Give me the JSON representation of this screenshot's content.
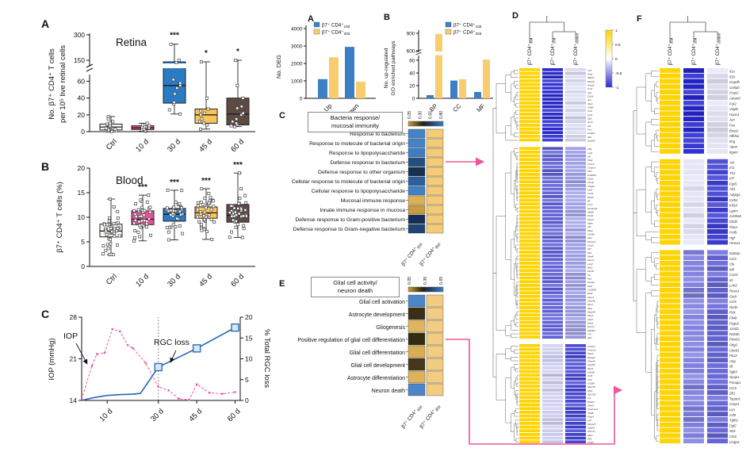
{
  "panels": {
    "a": "A",
    "b": "B",
    "c": "C",
    "mid_a": "A",
    "mid_b": "B",
    "mid_c": "C",
    "mid_e": "E",
    "d": "D",
    "f": "F"
  },
  "colors": {
    "pink_accent": "#f0559b",
    "box_ctrl": "#f5f5f2",
    "box_10d": "#f0509b",
    "box_30d": "#2b7bc4",
    "box_45d": "#f8c55a",
    "box_60d": "#5d4b43",
    "bar_blue": "#3d7fc4",
    "bar_yellow": "#f7cd6e",
    "cluster_yellow": "#ffd400",
    "line_blue": "#2f6db5"
  },
  "chart_data": [
    {
      "id": "retina_box",
      "type": "box",
      "panel": "A",
      "title": "Retina",
      "ylabel_lines": [
        "No. β7⁺ CD4⁺ T cells",
        "per 10⁵ live retinal cells"
      ],
      "yticks_lower": [
        0,
        20,
        40,
        60
      ],
      "yticks_upper": [
        150,
        300
      ],
      "broken_axis": true,
      "categories": [
        "Ctrl",
        "10 d",
        "30 d",
        "45 d",
        "60 d"
      ],
      "box_colors": [
        "#f5f5f2",
        "#f0509b",
        "#2b7bc4",
        "#f8c55a",
        "#5d4b43"
      ],
      "sig": [
        "",
        "",
        "***",
        "*",
        "*"
      ],
      "boxes": [
        {
          "lo": 0,
          "q1": 2,
          "med": 5.5,
          "q3": 9,
          "hi": 18,
          "pts": [
            0,
            0.5,
            1,
            2,
            3,
            4,
            5,
            6,
            7,
            8,
            9,
            10,
            12,
            15,
            18
          ]
        },
        {
          "lo": 0.5,
          "q1": 2.5,
          "med": 4.5,
          "q3": 7,
          "hi": 10,
          "pts": [
            0.5,
            1,
            2,
            3,
            4,
            4.5,
            5,
            5.5,
            6,
            7,
            8,
            10
          ]
        },
        {
          "lo": 21,
          "q1": 34,
          "med": 55,
          "q3": 140,
          "hi": 245,
          "pts": [
            21,
            26,
            33,
            35,
            45,
            52,
            55,
            58,
            62,
            135,
            150,
            245
          ]
        },
        {
          "lo": 3,
          "q1": 10,
          "med": 20,
          "q3": 27,
          "hi": 140,
          "pts": [
            3,
            8,
            10,
            12,
            15,
            20,
            22,
            25,
            27,
            40,
            140
          ]
        },
        {
          "lo": 6,
          "q1": 8,
          "med": 21,
          "q3": 40,
          "hi": 150,
          "pts": [
            6,
            7,
            8,
            10,
            12,
            15,
            20,
            22,
            28,
            30,
            40,
            55,
            150
          ]
        }
      ]
    },
    {
      "id": "blood_box",
      "type": "box",
      "panel": "B",
      "title": "Blood",
      "ylabel": "β7⁺ CD4⁺ T cells (%)",
      "yticks": [
        0,
        5,
        10,
        15,
        20
      ],
      "ylim": [
        0,
        20
      ],
      "categories": [
        "Ctrl",
        "10 d",
        "30 d",
        "45 d",
        "60 d"
      ],
      "box_colors": [
        "#f5f5f2",
        "#f0509b",
        "#2b7bc4",
        "#f8c55a",
        "#5d4b43"
      ],
      "sig": [
        "",
        "***",
        "***",
        "***",
        "***"
      ],
      "boxes": [
        {
          "lo": 2.4,
          "q1": 6,
          "med": 7.2,
          "q3": 8.6,
          "hi": 13.7,
          "n": 44
        },
        {
          "lo": 5.2,
          "q1": 8.5,
          "med": 9.6,
          "q3": 11.3,
          "hi": 14.5,
          "n": 40
        },
        {
          "lo": 5.4,
          "q1": 9.2,
          "med": 10.6,
          "q3": 11.8,
          "hi": 15.5,
          "n": 40
        },
        {
          "lo": 5.5,
          "q1": 9.8,
          "med": 10.9,
          "q3": 12.1,
          "hi": 15.8,
          "n": 40
        },
        {
          "lo": 5.9,
          "q1": 9,
          "med": 10.4,
          "q3": 12.6,
          "hi": 19,
          "n": 40
        }
      ]
    },
    {
      "id": "iop_line",
      "type": "line",
      "panel": "C",
      "ylabel_left": "IOP (mmHg)",
      "yticks_left": [
        14,
        21,
        28
      ],
      "ylabel_right": "% Total RGC loss",
      "yticks_right": [
        0,
        5,
        10,
        15,
        20
      ],
      "xtick_days": [
        10,
        30,
        45,
        60
      ],
      "xticks": [
        "10 d",
        "30 d",
        "45 d",
        "60 d"
      ],
      "vline_day": 30,
      "ann_iop": "IOP",
      "ann_rgc": "RGC loss",
      "series": [
        {
          "name": "IOP",
          "color": "#f0559b",
          "style": "dashed",
          "points": [
            [
              0,
              14.2
            ],
            [
              4,
              19.8
            ],
            [
              6,
              21.8
            ],
            [
              9,
              22.0
            ],
            [
              12,
              26.0
            ],
            [
              15,
              25.6
            ],
            [
              18,
              23.3
            ],
            [
              20,
              22.8
            ],
            [
              25,
              20.3
            ],
            [
              30,
              16.3
            ],
            [
              34,
              15.7
            ],
            [
              38,
              14.3
            ],
            [
              42,
              14.1
            ],
            [
              45,
              16.7
            ],
            [
              50,
              15.3
            ],
            [
              55,
              15.1
            ],
            [
              60,
              15.4
            ]
          ]
        },
        {
          "name": "RGC loss",
          "color": "#2f6db5",
          "style": "solid",
          "axis": "right",
          "points": [
            [
              0,
              0
            ],
            [
              5,
              0.7
            ],
            [
              10,
              1.2
            ],
            [
              15,
              1.4
            ],
            [
              20,
              1.5
            ],
            [
              23,
              1.7
            ],
            [
              30,
              8
            ],
            [
              45,
              12.5
            ],
            [
              60,
              17.5
            ]
          ],
          "marker_days": [
            30,
            45,
            60
          ]
        }
      ]
    },
    {
      "id": "deg_bar",
      "type": "bar",
      "panel": "A",
      "ylabel": "No. DEG",
      "yticks": [
        0,
        1000,
        2000,
        3000,
        4000
      ],
      "ylim": [
        0,
        4000
      ],
      "categories": [
        "Up",
        "Down"
      ],
      "series": [
        {
          "name": "β7⁺ CD4⁺",
          "sub": "10d",
          "color": "#3d7fc4",
          "values": [
            1100,
            2950
          ]
        },
        {
          "name": "β7⁺ CD4⁺",
          "sub": "30d",
          "color": "#f7cd6e",
          "values": [
            2350,
            950
          ]
        }
      ]
    },
    {
      "id": "go_bar",
      "type": "bar",
      "panel": "B",
      "ylabel_lines": [
        "No. up-regulated",
        "GO enriched pathways"
      ],
      "yticks_lower": [
        0,
        20,
        40,
        60
      ],
      "yticks_upper": [
        600,
        900
      ],
      "broken_axis": true,
      "categories": [
        "BP",
        "CC",
        "MF"
      ],
      "series": [
        {
          "name": "β7⁺ CD4⁺",
          "sub": "10d",
          "color": "#3d7fc4",
          "values": [
            5,
            28,
            10
          ]
        },
        {
          "name": "β7⁺ CD4⁺",
          "sub": "30d",
          "color": "#f7cd6e",
          "values": [
            890,
            30,
            61
          ]
        }
      ]
    },
    {
      "id": "bacteria_heatmap",
      "type": "heatmap",
      "panel": "C",
      "title_lines": [
        "Bacteria response/",
        "mucosal immunity"
      ],
      "scale_ticks": [
        "0.05",
        "0.30",
        "0.55",
        "0.80"
      ],
      "columns": [
        {
          "main": "β7⁺ CD4⁺",
          "sub": "10d"
        },
        {
          "main": "β7⁺ CD4⁺",
          "sub": "30d"
        }
      ],
      "rows": [
        "Response to bacterium",
        "Response to molecule of bacterial origin",
        "Response to lipopolysaccharide",
        "Defense response to bacterium",
        "Defense response to other organism",
        "Cellular response to molecule of bacterial origin",
        "Cellular response to lipopolysaccharide",
        "Mucosal immune response",
        "Innate immune response in mucosa",
        "Defense response to Gram-positive bacterium",
        "Defense response to Gram-negative bacterium"
      ],
      "col1_colors": [
        "#4484c6",
        "#4484c6",
        "#3f7dc0",
        "#24507f",
        "#16304f",
        "#2d5f9e",
        "#4180c2",
        "#dcb156",
        "#c89b3e",
        "#142e55",
        "#1f4473"
      ],
      "col2_color": "#f5cc75"
    },
    {
      "id": "glial_heatmap",
      "type": "heatmap",
      "panel": "E",
      "title_lines": [
        "Glial cell activity/",
        "neuron death"
      ],
      "scale_ticks": [
        "0.05",
        "0.35",
        "0.65"
      ],
      "columns": [
        {
          "main": "β7⁺ CD4⁺",
          "sub": "10d"
        },
        {
          "main": "β7⁺ CD4⁺",
          "sub": "30d"
        }
      ],
      "rows": [
        "Glial cell activation",
        "Astrocyte development",
        "Gliogenesis",
        "Positive regulation of glial cell differentiation",
        "Glial cell differentiation",
        "Glial cell development",
        "Astrocyte differentiation",
        "Neuron death"
      ],
      "col1_colors": [
        "#4a86c8",
        "#3a2f16",
        "#dfb45e",
        "#332a12",
        "#d9ad52",
        "#46371a",
        "#ddb25c",
        "#4a86c8"
      ],
      "col2_color": "#f2cc80"
    },
    {
      "id": "cluster_d",
      "type": "cluster_heatmap",
      "panel": "D",
      "columns": [
        {
          "main": "β7⁺ CD4⁺",
          "sub": "30d"
        },
        {
          "main": "β7⁺ CD4⁺",
          "sub": "10d"
        },
        {
          "main": "β7⁺ CD4⁺",
          "sub": "control"
        }
      ],
      "col1_color": "#ffd400",
      "colorbar_ticks": [
        "1",
        "0.5",
        "0",
        "-0.5",
        "-1"
      ],
      "clusters": [
        {
          "col2": "#2a2ad0",
          "col3": "#dedef6",
          "genes": [
            "Tlr1",
            "Arg1",
            "Nfkbiz",
            "Mmp9",
            "Anxa3",
            "Ccr1",
            "Irg1",
            "Cd14",
            "Jun",
            "Jak2",
            "Cd80",
            "Xcl1",
            "Lyz1",
            "Gp2",
            "Junb",
            "Id1",
            "Fos",
            "Cebpb",
            "Il1b",
            "Gapdh"
          ]
        },
        {
          "col2": "#6060d8",
          "col3": "#a0a0e8",
          "genes": [
            "Cfla",
            "Lrg1",
            "Ifi1",
            "Hfa1",
            "Trem2",
            "Cmtm3",
            "Hk3",
            "S100a9",
            "Cybb",
            "Camp",
            "Trilga3",
            "Ly6c",
            "Ccrl2",
            "Plod1",
            "Il6",
            "Cer1",
            "Serpina1",
            "Zfp36",
            "Fosl1",
            "Ptgs2",
            "Itgax",
            "Ahr",
            "Plaur",
            "Cd14b",
            "Sell",
            "Mmp13",
            "Cxcl2",
            "Il27",
            "Syk",
            "Nfat5",
            "Plscr1",
            "Lcn2",
            "Bst2",
            "Fpr2b",
            "Tyr",
            "Hck",
            "Hspa2",
            "Axl2",
            "Cd300lf",
            "Ral2",
            "Fcgr3",
            "Clec4d",
            "Gpr2",
            "Il2rg",
            "Slamf8",
            "Nlrp3",
            "Irak3",
            "Stat3",
            "Socs3",
            "Myd88",
            "Tnf",
            "Il1rn"
          ]
        },
        {
          "col2": "#d0d0f2",
          "col3": "#4646d4",
          "genes": [
            "Cxcl13",
            "Tmem2",
            "Plyn2",
            "Rasgrp",
            "Clec4e",
            "Inpp5d",
            "Xbp1",
            "Cd160",
            "Ccl9",
            "Tlr5",
            "Cd180",
            "Slamf6",
            "Nfil3",
            "Gpr183",
            "Lpl",
            "Sh2b2",
            "Trerf1",
            "Ceacam1",
            "Cd48",
            "Fcgr4",
            "Lyn",
            "Mmp25",
            "Lgals9",
            "Clec4n",
            "Mycl",
            "Flt3",
            "Trp53"
          ]
        }
      ]
    },
    {
      "id": "cluster_f",
      "type": "cluster_heatmap",
      "panel": "F",
      "columns": [
        {
          "main": "β7⁺ CD4⁺",
          "sub": "30d"
        },
        {
          "main": "β7⁺ CD4⁺",
          "sub": "10d"
        },
        {
          "main": "β7⁺ CD4⁺",
          "sub": "control"
        }
      ],
      "col1_color": "#ffd400",
      "clusters": [
        {
          "col2": "#2626ce",
          "col3": "#e8e8f8",
          "genes": [
            "Il1a",
            "Il18",
            "Gapdh",
            "Cebpb",
            "Erap2",
            "Adam8",
            "Fut2",
            "Vegfa",
            "Haus1",
            "Jun",
            "Fos",
            "Bmp2",
            "Nfkbia",
            "Ifng",
            "Apoe",
            "Itgam"
          ]
        },
        {
          "col2": "#e4e4f7",
          "col3": "#3c3cd2",
          "genes": [
            "Axl",
            "Irf1",
            "Tlr2",
            "Irf7",
            "Fgd1",
            "Aif1",
            "Adgrg1",
            "Cd52",
            "Kif1d",
            "Lgmn",
            "S100a6",
            "Ehd2",
            "Plaur",
            "Fcrlb",
            "Hgf",
            "Hmox1"
          ]
        },
        {
          "col2": "#8080e0",
          "col3": "#6868da",
          "genes": [
            "Dab2ip",
            "Ccl3",
            "Clu",
            "Mif",
            "Cxcl2",
            "Il2",
            "Lrrk2",
            "Rcan1",
            "Ctsb",
            "Ccl5",
            "Nod2",
            "Rdx",
            "Flt4b",
            "Pygo2",
            "Jarid2",
            "Rab3b",
            "Plxnb1",
            "Olig2",
            "Cited1",
            "Pax2",
            "Ang",
            "Il6",
            "Sgk3",
            "Nyap1",
            "Pmaip1",
            "Ccr5",
            "Dll1",
            "Tspan1",
            "Casp1",
            "Lyn",
            "Cd9",
            "Tgfb1",
            "Fgf2",
            "Myc",
            "Cts8",
            "Lingo1"
          ]
        }
      ]
    }
  ]
}
